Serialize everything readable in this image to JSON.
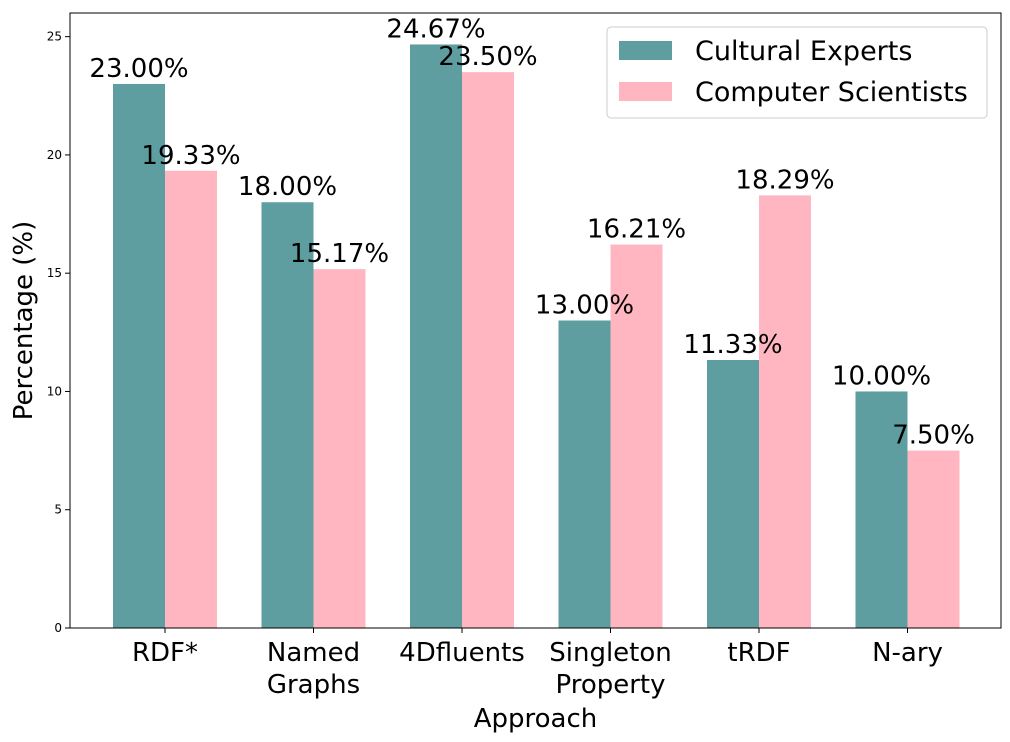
{
  "chart_data": {
    "type": "bar",
    "title": "",
    "xlabel": "Approach",
    "ylabel": "Percentage (%)",
    "ylim": [
      0,
      26
    ],
    "yticks": [
      0,
      5,
      10,
      15,
      20,
      25
    ],
    "categories": [
      [
        "RDF*"
      ],
      [
        "Named",
        "Graphs"
      ],
      [
        "4Dfluents"
      ],
      [
        "Singleton",
        "Property"
      ],
      [
        "tRDF"
      ],
      [
        "N-ary"
      ]
    ],
    "series": [
      {
        "name": "Cultural Experts",
        "color": "#5f9ea0",
        "values": [
          23.0,
          18.0,
          24.67,
          13.0,
          11.33,
          10.0
        ],
        "labels": [
          "23.00%",
          "18.00%",
          "24.67%",
          "13.00%",
          "11.33%",
          "10.00%"
        ]
      },
      {
        "name": "Computer Scientists",
        "color": "#ffb6c1",
        "values": [
          19.33,
          15.17,
          23.5,
          16.21,
          18.29,
          7.5
        ],
        "labels": [
          "19.33%",
          "15.17%",
          "23.50%",
          "16.21%",
          "18.29%",
          "7.50%"
        ]
      }
    ],
    "legend": "top-right",
    "grid": false
  }
}
